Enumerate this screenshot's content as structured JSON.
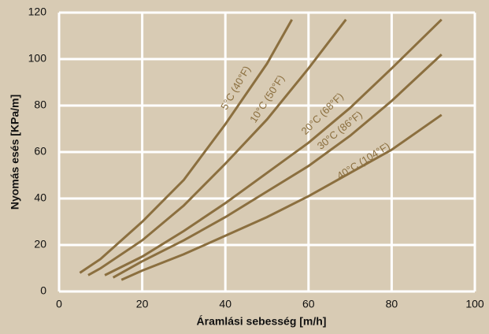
{
  "chart_data": {
    "type": "line",
    "x_label": "Áramlási sebesség [m/h]",
    "y_label": "Nyomás esés [KPa/m]",
    "xlim": [
      0,
      100
    ],
    "xticks": [
      0,
      20,
      40,
      60,
      80,
      100
    ],
    "ylim": [
      0,
      120
    ],
    "yticks": [
      0,
      20,
      40,
      60,
      80,
      100,
      120
    ],
    "grid": true,
    "series": [
      {
        "name": "5°C (40°F)",
        "color": "#8b6f3f",
        "x": [
          5,
          10,
          20,
          30,
          40,
          50,
          56
        ],
        "values": [
          8,
          14,
          30,
          48,
          72,
          98,
          117
        ]
      },
      {
        "name": "10°C (50°F)",
        "color": "#8b6f3f",
        "x": [
          7,
          10,
          20,
          30,
          40,
          50,
          60,
          69
        ],
        "values": [
          7,
          10,
          22,
          37,
          55,
          74,
          96,
          117
        ]
      },
      {
        "name": "20°C (68°F)",
        "color": "#8b6f3f",
        "x": [
          11,
          20,
          30,
          40,
          50,
          60,
          70,
          80,
          92
        ],
        "values": [
          7,
          15,
          26,
          38,
          51,
          64,
          79,
          96,
          117
        ]
      },
      {
        "name": "30°C (86°F)",
        "color": "#8b6f3f",
        "x": [
          13,
          20,
          30,
          40,
          50,
          60,
          70,
          80,
          92
        ],
        "values": [
          6,
          13,
          22,
          32,
          43,
          54,
          67,
          82,
          102
        ]
      },
      {
        "name": "40°C (104°F)",
        "color": "#8b6f3f",
        "x": [
          15,
          20,
          30,
          40,
          50,
          60,
          70,
          80,
          92
        ],
        "values": [
          5,
          9,
          16,
          24,
          32,
          41,
          51,
          61,
          76
        ]
      }
    ]
  }
}
